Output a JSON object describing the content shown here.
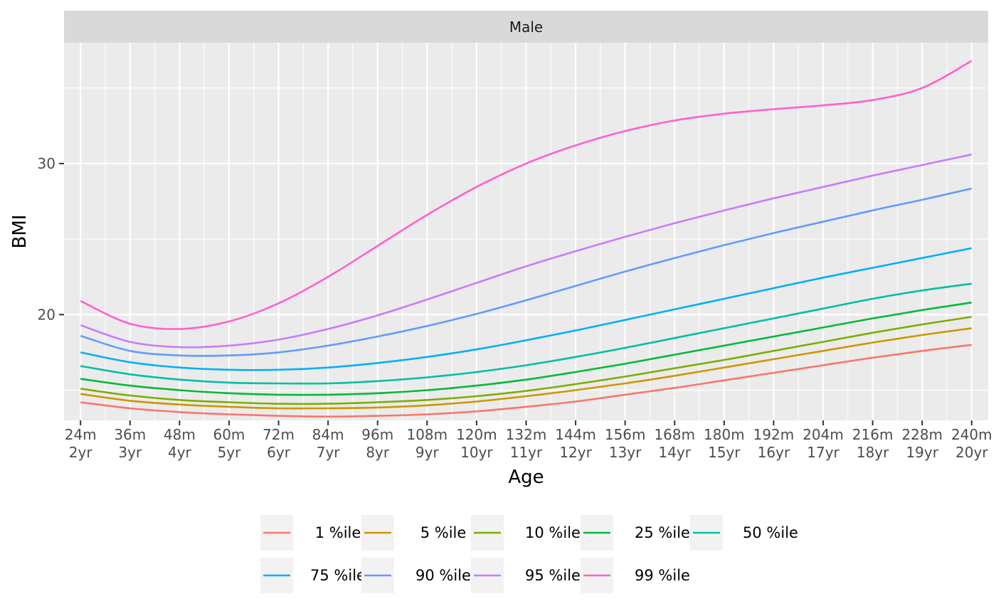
{
  "chart_data": {
    "type": "line",
    "facet_label": "Male",
    "xlabel": "Age",
    "ylabel": "BMI",
    "xlim": [
      20,
      244
    ],
    "ylim": [
      13.0,
      38.0
    ],
    "y_ticks": [
      20,
      30
    ],
    "grid": true,
    "legend_position": "bottom",
    "x_ticks": [
      {
        "value": 24,
        "label_line1": "24m",
        "label_line2": "2yr"
      },
      {
        "value": 36,
        "label_line1": "36m",
        "label_line2": "3yr"
      },
      {
        "value": 48,
        "label_line1": "48m",
        "label_line2": "4yr"
      },
      {
        "value": 60,
        "label_line1": "60m",
        "label_line2": "5yr"
      },
      {
        "value": 72,
        "label_line1": "72m",
        "label_line2": "6yr"
      },
      {
        "value": 84,
        "label_line1": "84m",
        "label_line2": "7yr"
      },
      {
        "value": 96,
        "label_line1": "96m",
        "label_line2": "8yr"
      },
      {
        "value": 108,
        "label_line1": "108m",
        "label_line2": "9yr"
      },
      {
        "value": 120,
        "label_line1": "120m",
        "label_line2": "10yr"
      },
      {
        "value": 132,
        "label_line1": "132m",
        "label_line2": "11yr"
      },
      {
        "value": 144,
        "label_line1": "144m",
        "label_line2": "12yr"
      },
      {
        "value": 156,
        "label_line1": "156m",
        "label_line2": "13yr"
      },
      {
        "value": 168,
        "label_line1": "168m",
        "label_line2": "14yr"
      },
      {
        "value": 180,
        "label_line1": "180m",
        "label_line2": "15yr"
      },
      {
        "value": 192,
        "label_line1": "192m",
        "label_line2": "16yr"
      },
      {
        "value": 204,
        "label_line1": "204m",
        "label_line2": "17yr"
      },
      {
        "value": 216,
        "label_line1": "216m",
        "label_line2": "18yr"
      },
      {
        "value": 228,
        "label_line1": "228m",
        "label_line2": "19yr"
      },
      {
        "value": 240,
        "label_line1": "240m",
        "label_line2": "20yr"
      }
    ],
    "x": [
      24,
      36,
      48,
      60,
      72,
      84,
      96,
      108,
      120,
      132,
      144,
      156,
      168,
      180,
      192,
      204,
      216,
      228,
      240
    ],
    "series": [
      {
        "name": "1 %ile",
        "color": "#F8766D",
        "values": [
          14.2,
          13.8,
          13.55,
          13.4,
          13.3,
          13.25,
          13.3,
          13.4,
          13.6,
          13.9,
          14.25,
          14.7,
          15.15,
          15.65,
          16.15,
          16.65,
          17.15,
          17.6,
          18.0
        ]
      },
      {
        "name": "5 %ile",
        "color": "#CD9600",
        "values": [
          14.75,
          14.3,
          14.05,
          13.9,
          13.8,
          13.8,
          13.85,
          14.0,
          14.25,
          14.6,
          15.0,
          15.45,
          15.95,
          16.5,
          17.05,
          17.6,
          18.15,
          18.65,
          19.1
        ]
      },
      {
        "name": "10 %ile",
        "color": "#7CAE00",
        "values": [
          15.1,
          14.65,
          14.35,
          14.2,
          14.1,
          14.1,
          14.2,
          14.35,
          14.6,
          14.95,
          15.4,
          15.9,
          16.45,
          17.0,
          17.6,
          18.2,
          18.8,
          19.35,
          19.85
        ]
      },
      {
        "name": "25 %ile",
        "color": "#00BA38",
        "values": [
          15.75,
          15.3,
          15.0,
          14.8,
          14.7,
          14.7,
          14.8,
          15.0,
          15.3,
          15.7,
          16.2,
          16.75,
          17.35,
          17.95,
          18.55,
          19.15,
          19.75,
          20.3,
          20.8
        ]
      },
      {
        "name": "50 %ile",
        "color": "#00BFA5",
        "values": [
          16.6,
          16.05,
          15.7,
          15.5,
          15.45,
          15.45,
          15.6,
          15.85,
          16.2,
          16.65,
          17.2,
          17.8,
          18.45,
          19.1,
          19.75,
          20.4,
          21.05,
          21.6,
          22.05
        ]
      },
      {
        "name": "75 %ile",
        "color": "#00B0F6",
        "values": [
          17.5,
          16.85,
          16.5,
          16.35,
          16.35,
          16.5,
          16.8,
          17.2,
          17.7,
          18.3,
          18.95,
          19.65,
          20.35,
          21.05,
          21.75,
          22.45,
          23.1,
          23.75,
          24.4
        ]
      },
      {
        "name": "90 %ile",
        "color": "#619CFF",
        "values": [
          18.6,
          17.6,
          17.3,
          17.3,
          17.5,
          17.95,
          18.55,
          19.25,
          20.05,
          20.95,
          21.9,
          22.85,
          23.75,
          24.6,
          25.4,
          26.15,
          26.9,
          27.6,
          28.35
        ]
      },
      {
        "name": "95 %ile",
        "color": "#C77CFF",
        "values": [
          19.3,
          18.2,
          17.85,
          17.95,
          18.35,
          19.05,
          19.95,
          21.0,
          22.1,
          23.2,
          24.2,
          25.15,
          26.05,
          26.9,
          27.7,
          28.45,
          29.2,
          29.9,
          30.6
        ]
      },
      {
        "name": "99 %ile",
        "color": "#FF61CC",
        "values": [
          20.9,
          19.4,
          19.05,
          19.55,
          20.75,
          22.5,
          24.55,
          26.6,
          28.45,
          30.0,
          31.2,
          32.15,
          32.85,
          33.3,
          33.6,
          33.85,
          34.2,
          35.0,
          36.8
        ]
      }
    ]
  }
}
